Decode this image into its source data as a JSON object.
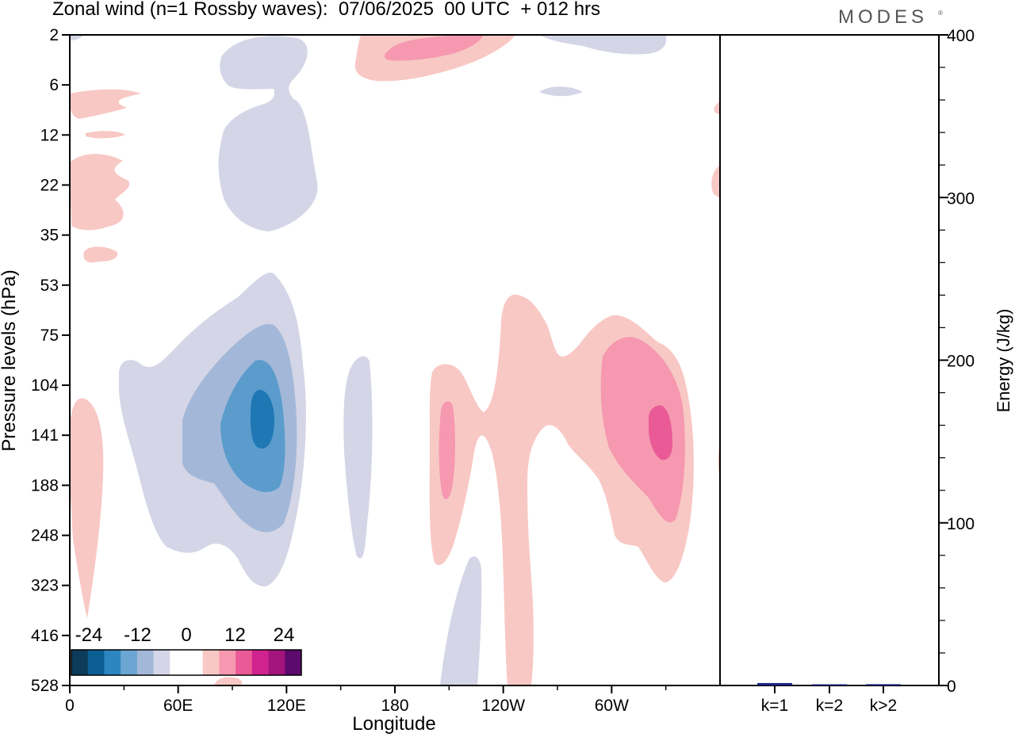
{
  "title": "Zonal wind (n=1 Rossby waves):  07/06/2025  00 UTC  + 012 hrs",
  "brand": "MODES",
  "brand_mark": "®",
  "colors": {
    "neg1": "#d4d5e6",
    "neg2": "#a3b8d8",
    "neg3": "#5b9ccc",
    "neg4": "#1f78b4",
    "pos1": "#f8c8c4",
    "pos2": "#f598b0",
    "pos3": "#ea5a97",
    "bar": "#1a237e",
    "axis": "#000000"
  },
  "chart_data": [
    {
      "type": "heatmap",
      "title": "Zonal wind (n=1 Rossby waves):  07/06/2025  00 UTC  + 012 hrs",
      "xlabel": "Longitude",
      "ylabel": "Pressure levels (hPa)",
      "x_ticks": [
        "0",
        "60E",
        "120E",
        "180",
        "120W",
        "60W"
      ],
      "y_ticks": [
        "2",
        "6",
        "12",
        "22",
        "35",
        "53",
        "75",
        "104",
        "141",
        "188",
        "248",
        "323",
        "416",
        "528"
      ],
      "colorbar": {
        "tick_labels": [
          "-24",
          "-12",
          "0",
          "12",
          "24"
        ],
        "colors": [
          "#0d3c5a",
          "#0b5f92",
          "#2e86c1",
          "#6aa6d1",
          "#a3b8d8",
          "#d4d5e6",
          "#ffffff",
          "#ffffff",
          "#f8c8c4",
          "#f598b0",
          "#ea5a97",
          "#d0238f",
          "#a3157d",
          "#5c0a6b"
        ]
      },
      "regions": [
        {
          "sign": "negative",
          "level": 1,
          "center_lon": 112,
          "center_level": "141",
          "approx_value": -6
        },
        {
          "sign": "negative",
          "level": 2,
          "center_lon": 110,
          "center_level": "141",
          "approx_value": -12
        },
        {
          "sign": "negative",
          "level": 3,
          "center_lon": 110,
          "center_level": "141",
          "approx_value": -15
        },
        {
          "sign": "negative",
          "level": 4,
          "center_lon": 110,
          "center_level": "141",
          "approx_value": -18
        },
        {
          "sign": "positive",
          "level": 3,
          "center_lon": 305,
          "center_level": "141",
          "approx_value": 15
        },
        {
          "sign": "positive",
          "level": 2,
          "center_lon": 304,
          "center_level": "141",
          "approx_value": 12
        },
        {
          "sign": "positive",
          "level": 3,
          "center_lon": 208,
          "center_level": "141",
          "approx_value": 12
        }
      ]
    },
    {
      "type": "bar",
      "ylabel": "Energy (J/kg)",
      "categories": [
        "k=1",
        "k=2",
        "k>2"
      ],
      "values": [
        1.5,
        0.5,
        0.8
      ],
      "ylim": [
        0,
        400
      ],
      "y_ticks": [
        "0",
        "100",
        "200",
        "300",
        "400"
      ]
    }
  ]
}
